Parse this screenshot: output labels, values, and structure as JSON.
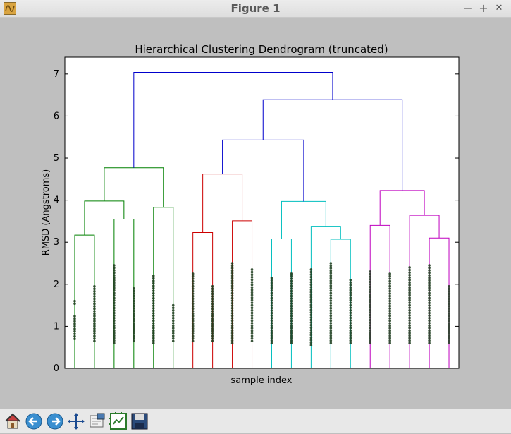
{
  "window": {
    "title": "Figure 1",
    "controls": {
      "minimize": "−",
      "maximize": "+",
      "close": "✕"
    }
  },
  "toolbar": {
    "buttons": [
      "home-icon",
      "back-icon",
      "forward-icon",
      "pan-icon",
      "zoom-icon",
      "configure-subplots-icon",
      "save-icon"
    ]
  },
  "colors": {
    "cluster1": "#008000",
    "cluster2": "#cc0000",
    "cluster3": "#00bfbf",
    "cluster4": "#bf00bf",
    "link": "#0000cc"
  },
  "chart_data": {
    "type": "dendrogram",
    "title": "Hierarchical Clustering Dendrogram (truncated)",
    "xlabel": "sample index",
    "ylabel": "RMSD (Angstroms)",
    "ylim": [
      0,
      7.4
    ],
    "yticks": [
      0,
      1,
      2,
      3,
      4,
      5,
      6,
      7
    ],
    "leaves": 20,
    "leaf_dots": [
      [
        0.7,
        1.6
      ],
      [
        0.65,
        1.95
      ],
      [
        0.6,
        2.45
      ],
      [
        0.65,
        1.9
      ],
      [
        0.6,
        2.2
      ],
      [
        0.65,
        1.5
      ],
      [
        0.65,
        2.25
      ],
      [
        0.65,
        1.95
      ],
      [
        0.6,
        2.5
      ],
      [
        0.65,
        2.35
      ],
      [
        0.6,
        2.15
      ],
      [
        0.6,
        2.25
      ],
      [
        0.55,
        2.35
      ],
      [
        0.6,
        2.5
      ],
      [
        0.6,
        2.1
      ],
      [
        0.6,
        2.3
      ],
      [
        0.6,
        2.25
      ],
      [
        0.6,
        2.4
      ],
      [
        0.6,
        2.45
      ],
      [
        0.6,
        1.95
      ]
    ],
    "links": [
      {
        "left": 0.5,
        "right": 1.5,
        "height": 3.17,
        "color": "cluster1",
        "lh": 0,
        "rh": 0
      },
      {
        "left": 2.5,
        "right": 3.5,
        "height": 3.55,
        "color": "cluster1",
        "lh": 0,
        "rh": 0
      },
      {
        "left": 1.0,
        "right": 3.0,
        "height": 3.98,
        "color": "cluster1",
        "lh": 3.17,
        "rh": 3.55
      },
      {
        "left": 4.5,
        "right": 5.5,
        "height": 3.83,
        "color": "cluster1",
        "lh": 0,
        "rh": 0
      },
      {
        "left": 2.0,
        "right": 5.0,
        "height": 4.77,
        "color": "cluster1",
        "lh": 3.98,
        "rh": 3.83
      },
      {
        "left": 6.5,
        "right": 7.5,
        "height": 3.23,
        "color": "cluster2",
        "lh": 0,
        "rh": 0
      },
      {
        "left": 8.5,
        "right": 9.5,
        "height": 3.51,
        "color": "cluster2",
        "lh": 0,
        "rh": 0
      },
      {
        "left": 7.0,
        "right": 9.0,
        "height": 4.62,
        "color": "cluster2",
        "lh": 3.23,
        "rh": 3.51
      },
      {
        "left": 10.5,
        "right": 11.5,
        "height": 3.08,
        "color": "cluster3",
        "lh": 0,
        "rh": 0
      },
      {
        "left": 13.5,
        "right": 14.5,
        "height": 3.07,
        "color": "cluster3",
        "lh": 0,
        "rh": 0
      },
      {
        "left": 12.5,
        "right": 14.0,
        "height": 3.38,
        "color": "cluster3",
        "lh": 0,
        "rh": 3.07
      },
      {
        "left": 11.0,
        "right": 13.25,
        "height": 3.97,
        "color": "cluster3",
        "lh": 3.08,
        "rh": 3.38
      },
      {
        "left": 8.0,
        "right": 12.125,
        "height": 5.43,
        "color": "link",
        "lh": 4.62,
        "rh": 3.97
      },
      {
        "left": 15.5,
        "right": 16.5,
        "height": 3.4,
        "color": "cluster4",
        "lh": 0,
        "rh": 0
      },
      {
        "left": 18.5,
        "right": 19.5,
        "height": 3.1,
        "color": "cluster4",
        "lh": 0,
        "rh": 0
      },
      {
        "left": 17.5,
        "right": 19.0,
        "height": 3.64,
        "color": "cluster4",
        "lh": 0,
        "rh": 3.1
      },
      {
        "left": 16.0,
        "right": 18.25,
        "height": 4.23,
        "color": "cluster4",
        "lh": 3.4,
        "rh": 3.64
      },
      {
        "left": 10.0625,
        "right": 17.125,
        "height": 6.39,
        "color": "link",
        "lh": 5.43,
        "rh": 4.23
      },
      {
        "left": 3.5,
        "right": 13.59375,
        "height": 7.04,
        "color": "link",
        "lh": 4.77,
        "rh": 6.39
      }
    ]
  }
}
